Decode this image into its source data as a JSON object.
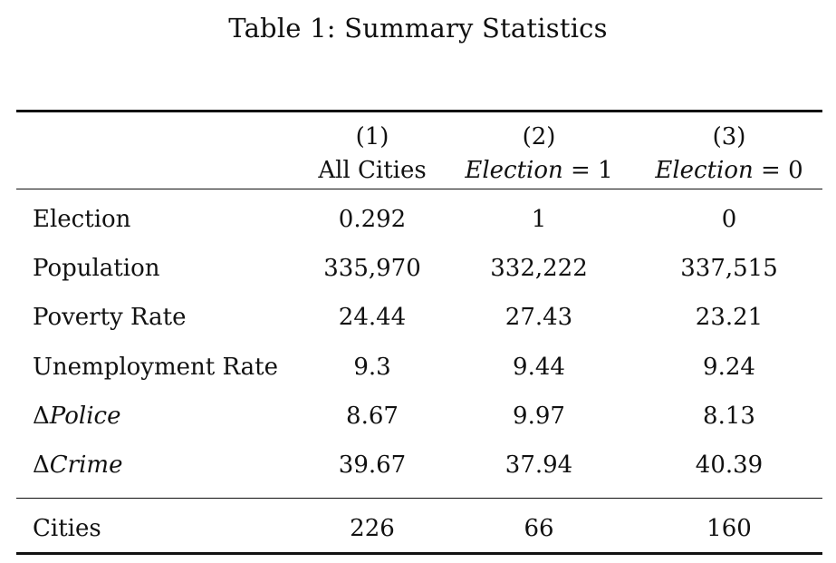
{
  "caption": "Table 1: Summary Statistics",
  "columns": [
    {
      "number": "(1)",
      "label": "All Cities",
      "label_italic": "",
      "label_suffix": ""
    },
    {
      "number": "(2)",
      "label": "",
      "label_italic": "Election",
      "label_suffix": " = 1"
    },
    {
      "number": "(3)",
      "label": "",
      "label_italic": "Election",
      "label_suffix": " = 0"
    }
  ],
  "rows": [
    {
      "prefix": "",
      "label": "Election",
      "label_italic": "",
      "values": [
        "0.292",
        "1",
        "0"
      ]
    },
    {
      "prefix": "",
      "label": "Population",
      "label_italic": "",
      "values": [
        "335,970",
        "332,222",
        "337,515"
      ]
    },
    {
      "prefix": "",
      "label": "Poverty Rate",
      "label_italic": "",
      "values": [
        "24.44",
        "27.43",
        "23.21"
      ]
    },
    {
      "prefix": "",
      "label": "Unemployment Rate",
      "label_italic": "",
      "values": [
        "9.3",
        "9.44",
        "9.24"
      ]
    },
    {
      "prefix": "Δ",
      "label": "",
      "label_italic": "Police",
      "values": [
        "8.67",
        "9.97",
        "8.13"
      ]
    },
    {
      "prefix": "Δ",
      "label": "",
      "label_italic": "Crime",
      "values": [
        "39.67",
        "37.94",
        "40.39"
      ]
    }
  ],
  "footer_row": {
    "label": "Cities",
    "values": [
      "226",
      "66",
      "160"
    ]
  }
}
